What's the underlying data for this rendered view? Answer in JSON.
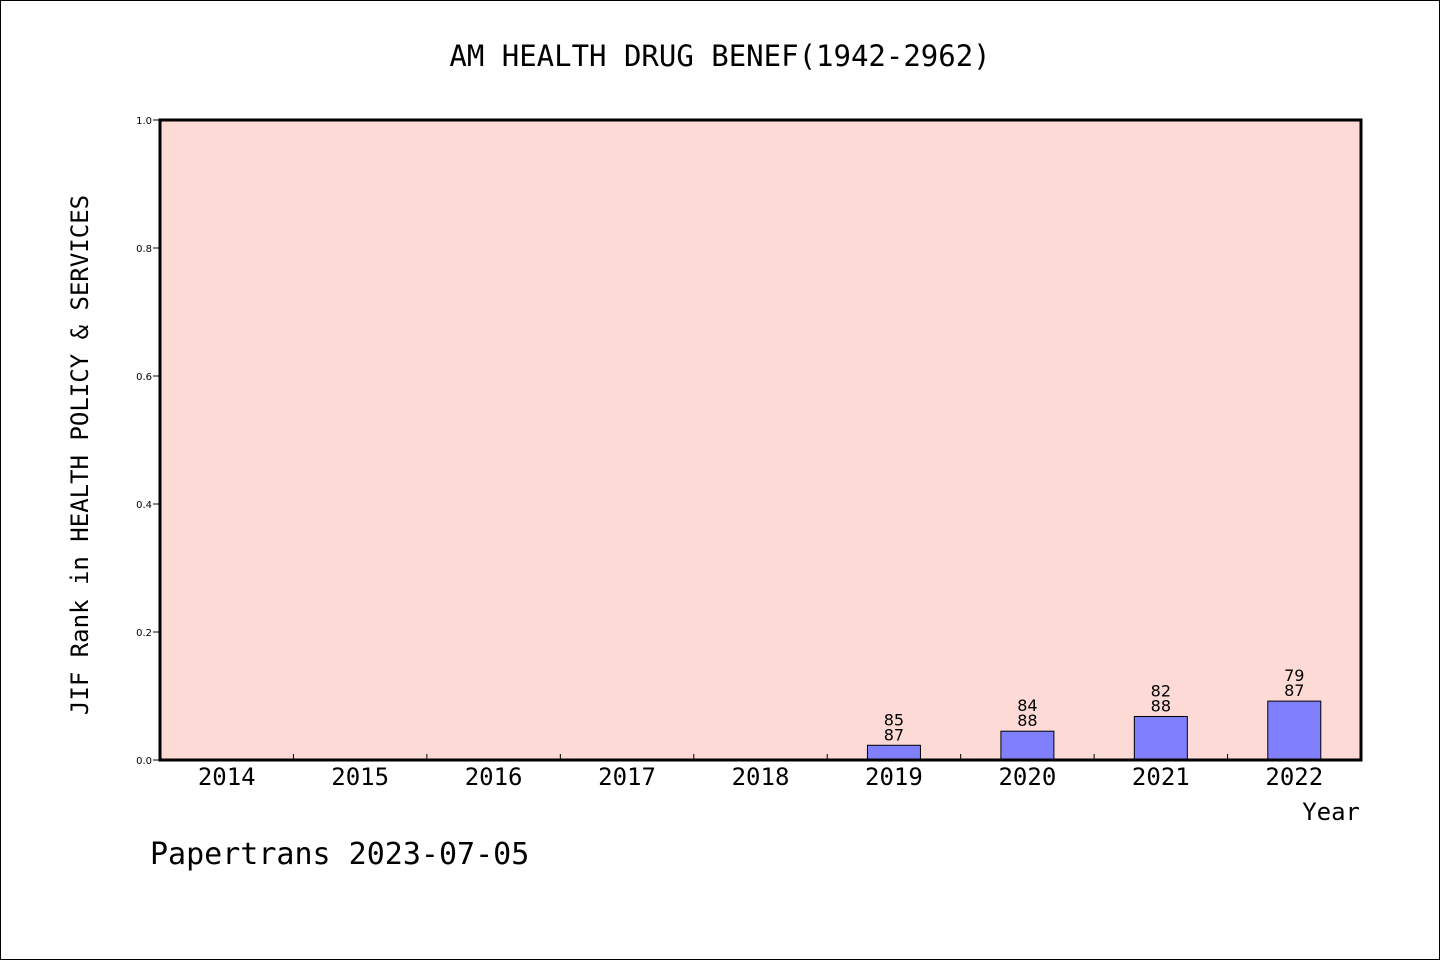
{
  "chart_data": {
    "type": "bar",
    "title": "AM HEALTH DRUG BENEF(1942-2962)",
    "xlabel": "Year",
    "ylabel": "JIF Rank in HEALTH POLICY & SERVICES",
    "ylim": [
      0,
      1.0
    ],
    "yticks": [
      "0.0",
      "0.2",
      "0.4",
      "0.6",
      "0.8",
      "1.0"
    ],
    "categories": [
      "2014",
      "2015",
      "2016",
      "2017",
      "2018",
      "2019",
      "2020",
      "2021",
      "2022"
    ],
    "values": [
      null,
      null,
      null,
      null,
      null,
      0.023,
      0.045,
      0.068,
      0.092
    ],
    "rank_labels": [
      null,
      null,
      null,
      null,
      null,
      "85",
      "84",
      "82",
      "79"
    ],
    "total_labels": [
      null,
      null,
      null,
      null,
      null,
      "87",
      "88",
      "88",
      "87"
    ],
    "grid": false,
    "colors": {
      "plot_bg": "#fddad6",
      "bar": "#8080ff"
    }
  },
  "footer": {
    "watermark": "Papertrans 2023-07-05"
  }
}
